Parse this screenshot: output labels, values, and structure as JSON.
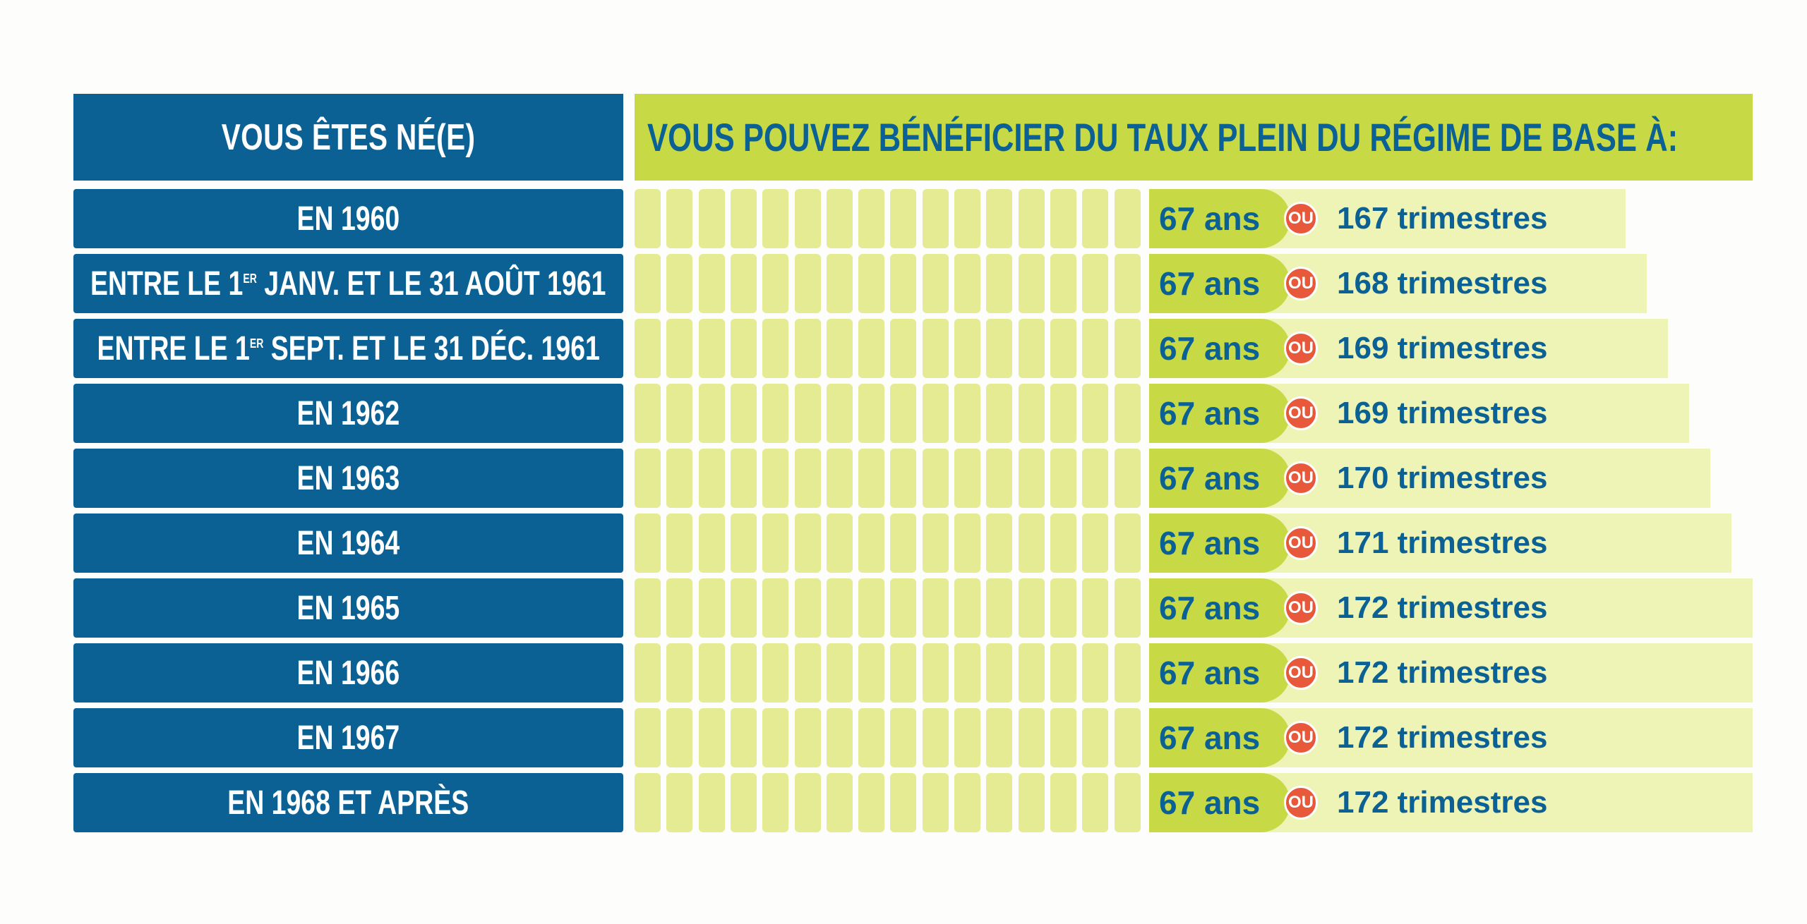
{
  "header": {
    "left_title": "VOUS ÊTES NÉ(E)",
    "right_title": "VOUS POUVEZ BÉNÉFICIER DU TAUX PLEIN DU  RÉGIME DE BASE  À:"
  },
  "connector": "OU",
  "colors": {
    "blue": "#0b6194",
    "green": "#c7d944",
    "light_green": "#e4eb93",
    "pale_green": "#eef3b6",
    "orange": "#e8583a"
  },
  "rows": [
    {
      "birth": "EN 1960",
      "age": "67 ans",
      "quarters": "167 trimestres"
    },
    {
      "birth_pre": "ENTRE LE 1",
      "birth_sup": "ER",
      "birth_post": " JANV. ET LE 31 AOÛT 1961",
      "age": "67 ans",
      "quarters": "168 trimestres"
    },
    {
      "birth_pre": "ENTRE LE 1",
      "birth_sup": "ER",
      "birth_post": " SEPT. ET LE 31 DÉC. 1961",
      "age": "67 ans",
      "quarters": "169 trimestres"
    },
    {
      "birth": "EN 1962",
      "age": "67 ans",
      "quarters": "169 trimestres"
    },
    {
      "birth": "EN 1963",
      "age": "67 ans",
      "quarters": "170 trimestres"
    },
    {
      "birth": "EN 1964",
      "age": "67 ans",
      "quarters": "171 trimestres"
    },
    {
      "birth": "EN 1965",
      "age": "67 ans",
      "quarters": "172 trimestres"
    },
    {
      "birth": "EN 1966",
      "age": "67 ans",
      "quarters": "172 trimestres"
    },
    {
      "birth": "EN 1967",
      "age": "67 ans",
      "quarters": "172 trimestres"
    },
    {
      "birth": "EN 1968 ET APRÈS",
      "age": "67 ans",
      "quarters": "172 trimestres"
    }
  ]
}
